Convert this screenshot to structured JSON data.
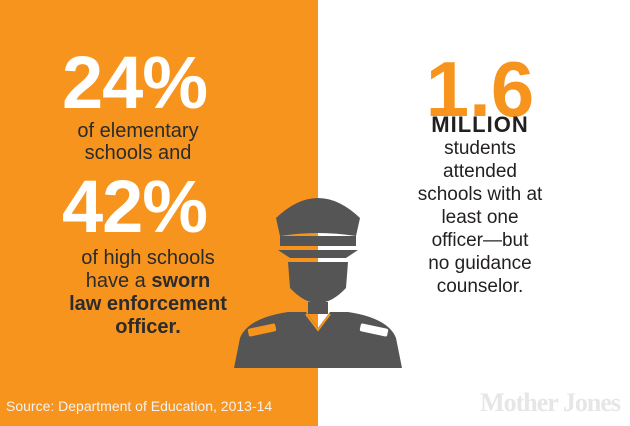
{
  "left": {
    "stat1_value": "24%",
    "stat1_line1": "of elementary",
    "stat1_line2": "schools and",
    "stat2_value": "42%",
    "stat2_line1": "of high schools",
    "stat2_line2_prefix": "have a ",
    "stat2_line2_bold": "sworn",
    "stat2_line3_bold": "law enforcement",
    "stat2_line4_bold": "officer."
  },
  "right": {
    "value": "1.6",
    "unit": "MILLION",
    "line1": "students",
    "line2": "attended",
    "line3": "schools with at",
    "line4": "least one",
    "line5": "officer—but",
    "line6": "no guidance",
    "line7": "counselor."
  },
  "footer": {
    "source": "Source: Department of Education, 2013-14",
    "logo": "Mother Jones"
  },
  "colors": {
    "orange": "#f7941e",
    "officer_dark": "#555555",
    "officer_light": "#f5b26b",
    "text_dark": "#231f20"
  },
  "icon": "police-officer-icon"
}
